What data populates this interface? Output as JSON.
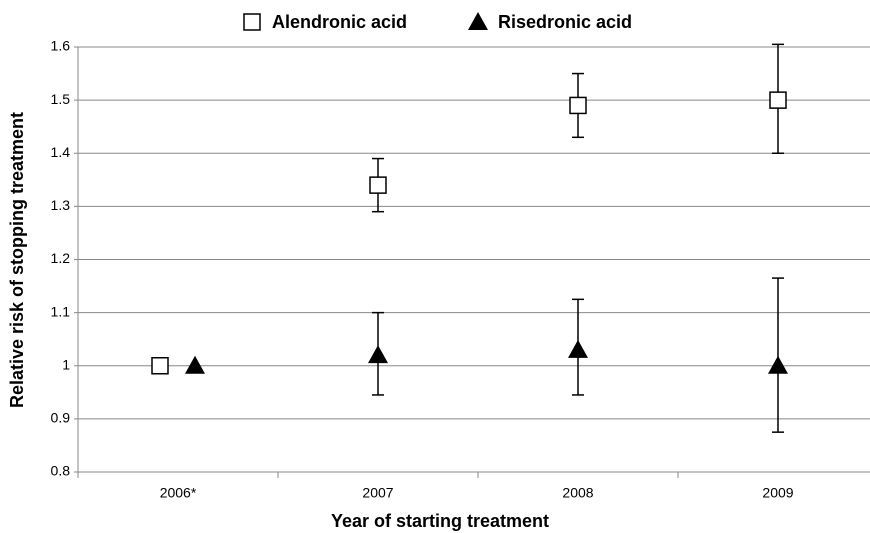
{
  "chart_data": {
    "type": "errorbar",
    "xlabel": "Year of starting treatment",
    "ylabel": "Relative risk of stopping treatment",
    "categories": [
      "2006*",
      "2007",
      "2008",
      "2009"
    ],
    "series": [
      {
        "name": "Alendronic acid",
        "marker": "square",
        "color": "#000000",
        "values": [
          1.0,
          1.34,
          1.49,
          1.5
        ],
        "low": [
          null,
          1.29,
          1.43,
          1.4
        ],
        "high": [
          null,
          1.39,
          1.55,
          1.605
        ]
      },
      {
        "name": "Risedronic acid",
        "marker": "triangle",
        "color": "#000000",
        "values": [
          1.0,
          1.02,
          1.03,
          1.0
        ],
        "low": [
          null,
          0.945,
          0.945,
          0.875
        ],
        "high": [
          null,
          1.1,
          1.125,
          1.165
        ]
      }
    ],
    "ylim": [
      0.8,
      1.6
    ],
    "yticks": [
      0.8,
      0.9,
      1,
      1.1,
      1.2,
      1.3,
      1.4,
      1.5,
      1.6
    ],
    "grid": true,
    "legend": "top"
  }
}
